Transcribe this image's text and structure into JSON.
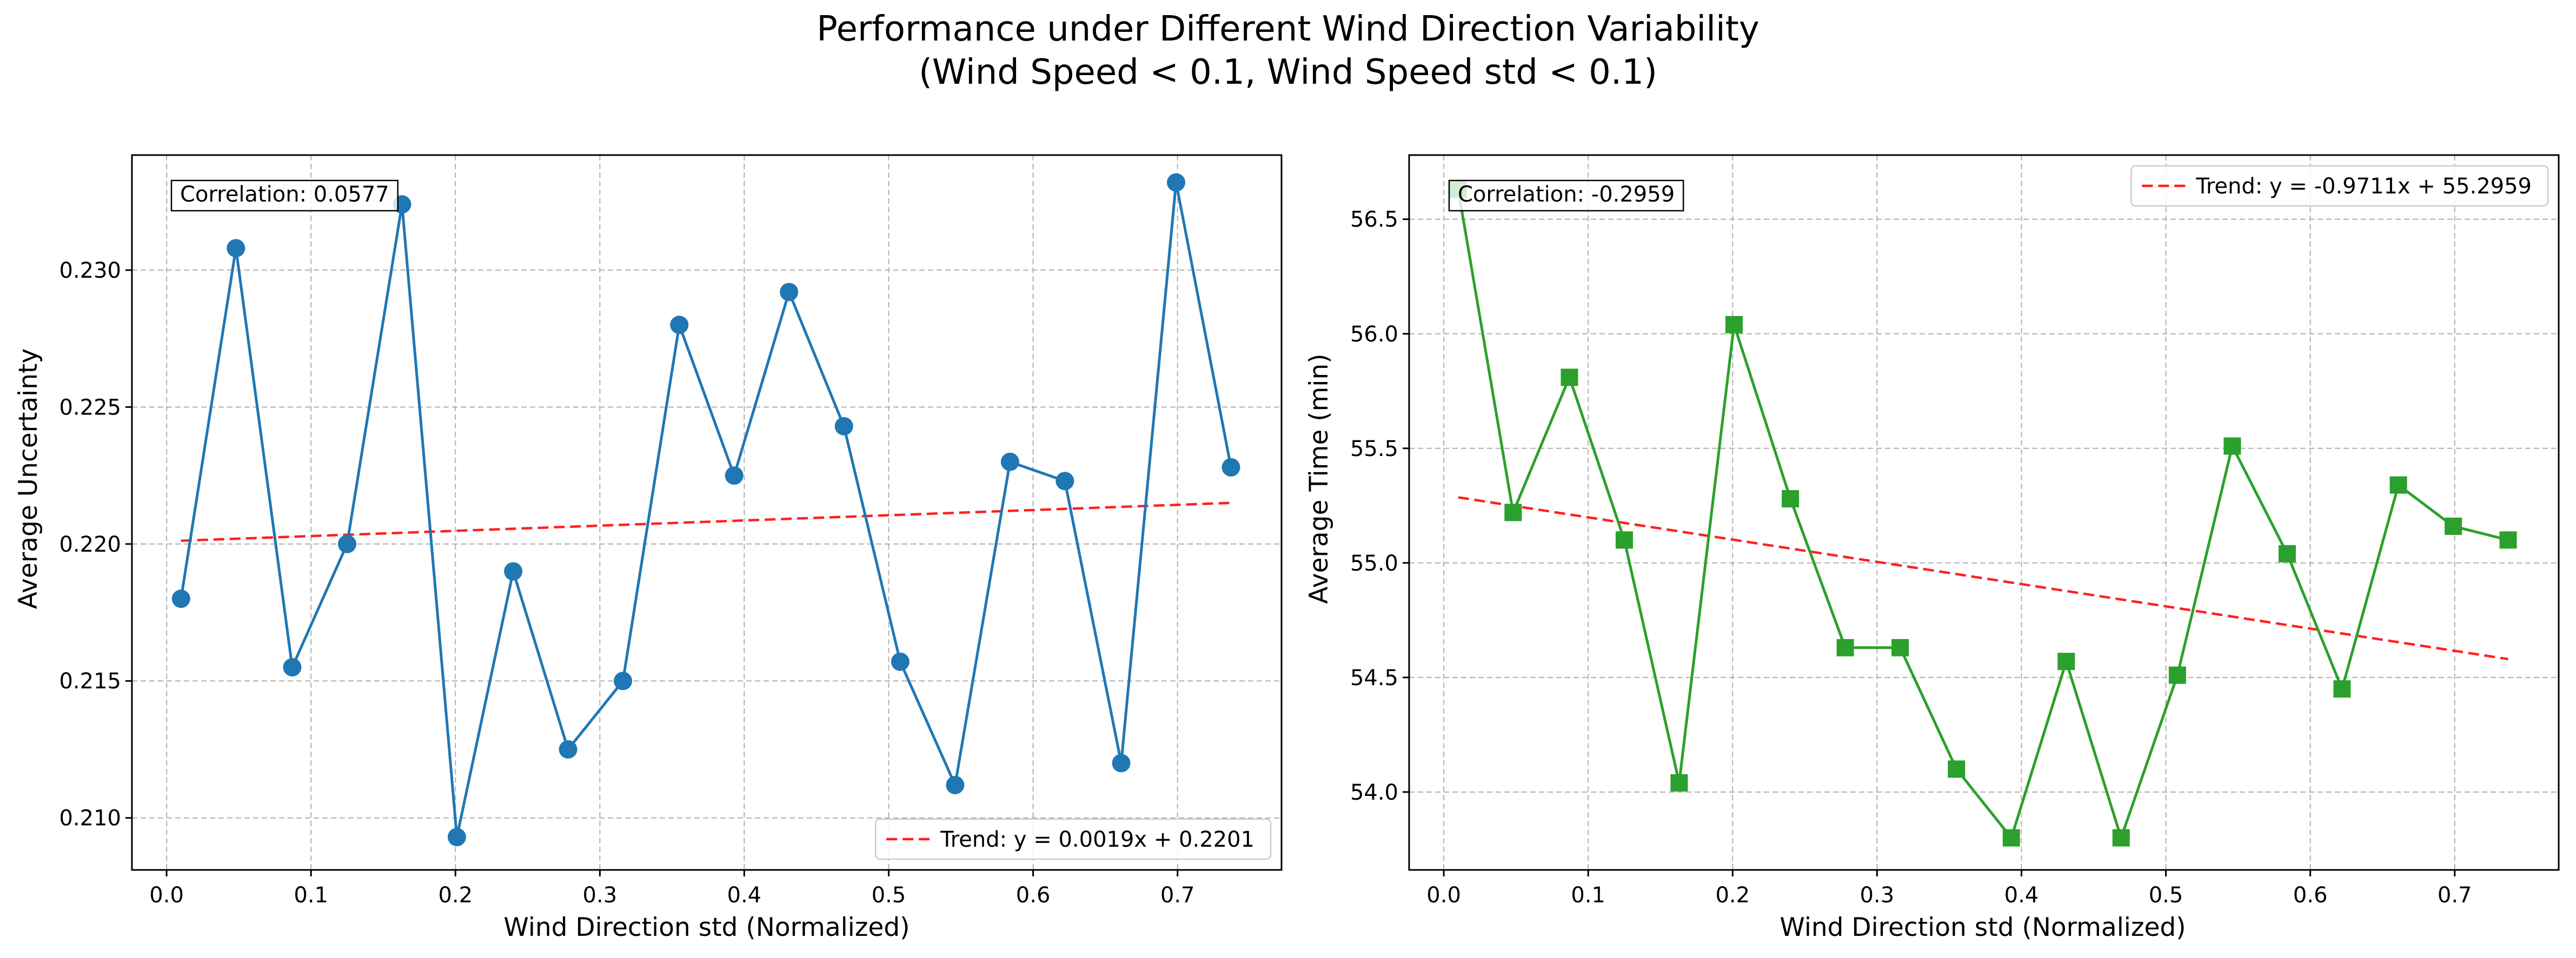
{
  "figure": {
    "suptitle_line1": "Performance under Different Wind Direction Variability",
    "suptitle_line2": "(Wind Speed < 0.1, Wind Speed std < 0.1)"
  },
  "colors": {
    "left_series": "#1f77b4",
    "right_series": "#2ca02c",
    "trend": "#ff2020",
    "grid": "#b0b0b0"
  },
  "chart_data": [
    {
      "type": "line",
      "xlabel": "Wind Direction std (Normalized)",
      "ylabel": "Average Uncertainty",
      "xlim": [
        -0.024,
        0.772
      ],
      "ylim": [
        0.2081,
        0.2342
      ],
      "xticks": [
        0.0,
        0.1,
        0.2,
        0.3,
        0.4,
        0.5,
        0.6,
        0.7
      ],
      "xtick_labels": [
        "0.0",
        "0.1",
        "0.2",
        "0.3",
        "0.4",
        "0.5",
        "0.6",
        "0.7"
      ],
      "yticks": [
        0.21,
        0.215,
        0.22,
        0.225,
        0.23
      ],
      "ytick_labels": [
        "0.210",
        "0.215",
        "0.220",
        "0.225",
        "0.230"
      ],
      "grid": true,
      "marker": "circle",
      "series_color": "#1f77b4",
      "x": [
        0.01,
        0.048,
        0.087,
        0.125,
        0.163,
        0.201,
        0.24,
        0.278,
        0.316,
        0.355,
        0.393,
        0.431,
        0.469,
        0.508,
        0.546,
        0.584,
        0.622,
        0.661,
        0.699,
        0.737
      ],
      "y": [
        0.218,
        0.2308,
        0.2155,
        0.22,
        0.2324,
        0.2093,
        0.219,
        0.2125,
        0.215,
        0.228,
        0.2225,
        0.2292,
        0.2243,
        0.2157,
        0.2112,
        0.223,
        0.2223,
        0.212,
        0.2332,
        0.2228
      ],
      "trend": {
        "slope": 0.0019,
        "intercept": 0.2201,
        "label": "Trend: y = 0.0019x + 0.2201"
      },
      "correlation_text": "Correlation: 0.0577",
      "legend_loc": "lower right",
      "correlation_loc": "upper left"
    },
    {
      "type": "line",
      "xlabel": "Wind Direction std (Normalized)",
      "ylabel": "Average Time (min)",
      "xlim": [
        -0.024,
        0.772
      ],
      "ylim": [
        53.66,
        56.78
      ],
      "xticks": [
        0.0,
        0.1,
        0.2,
        0.3,
        0.4,
        0.5,
        0.6,
        0.7
      ],
      "xtick_labels": [
        "0.0",
        "0.1",
        "0.2",
        "0.3",
        "0.4",
        "0.5",
        "0.6",
        "0.7"
      ],
      "yticks": [
        54.0,
        54.5,
        55.0,
        55.5,
        56.0,
        56.5
      ],
      "ytick_labels": [
        "54.0",
        "54.5",
        "55.0",
        "55.5",
        "56.0",
        "56.5"
      ],
      "grid": true,
      "marker": "square",
      "series_color": "#2ca02c",
      "x": [
        0.01,
        0.048,
        0.087,
        0.125,
        0.163,
        0.201,
        0.24,
        0.278,
        0.316,
        0.355,
        0.393,
        0.431,
        0.469,
        0.508,
        0.546,
        0.584,
        0.622,
        0.661,
        0.699,
        0.737
      ],
      "y": [
        56.63,
        55.22,
        55.81,
        55.1,
        54.04,
        56.04,
        55.28,
        54.63,
        54.63,
        54.1,
        53.8,
        54.57,
        53.8,
        54.51,
        55.51,
        55.04,
        54.45,
        55.34,
        55.16,
        55.1
      ],
      "trend": {
        "slope": -0.9711,
        "intercept": 55.2959,
        "label": "Trend: y = -0.9711x + 55.2959"
      },
      "correlation_text": "Correlation: -0.2959",
      "legend_loc": "upper right",
      "correlation_loc": "upper left"
    }
  ]
}
